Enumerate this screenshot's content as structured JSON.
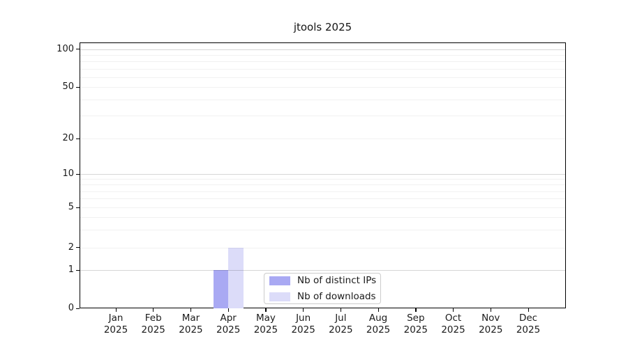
{
  "chart_data": {
    "type": "bar",
    "title": "jtools 2025",
    "categories": [
      "Jan",
      "Feb",
      "Mar",
      "Apr",
      "May",
      "Jun",
      "Jul",
      "Aug",
      "Sep",
      "Oct",
      "Nov",
      "Dec"
    ],
    "category_year": "2025",
    "series": [
      {
        "name": "Nb of distinct IPs",
        "color": "#a9a9f3",
        "values": [
          0,
          0,
          0,
          1,
          0,
          0,
          0,
          0,
          0,
          0,
          0,
          0
        ]
      },
      {
        "name": "Nb of downloads",
        "color": "#dcdcf9",
        "values": [
          0,
          0,
          0,
          2,
          0,
          0,
          0,
          0,
          0,
          0,
          0,
          0
        ]
      }
    ],
    "y_axis": {
      "ticks": [
        0,
        1,
        2,
        5,
        10,
        20,
        50,
        100
      ],
      "major_grid_values": [
        1,
        10,
        100
      ],
      "minor_grid_values": [
        3,
        4,
        6,
        7,
        8,
        9,
        30,
        40,
        60,
        70,
        80,
        90
      ],
      "scale": "log-like with linear segment to 0",
      "ylim": [
        0,
        115
      ]
    },
    "x_axis": {
      "label_format": "month over year",
      "grid": false
    },
    "legend": {
      "position": "lower center",
      "entries": [
        "Nb of distinct IPs",
        "Nb of downloads"
      ]
    }
  }
}
